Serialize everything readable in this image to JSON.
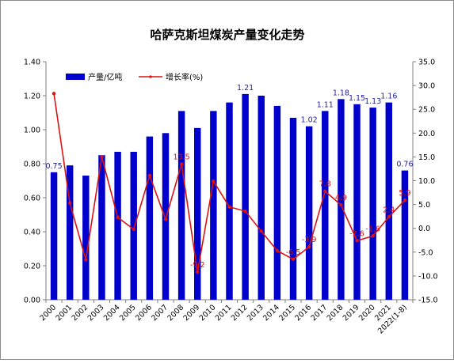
{
  "chart_data": {
    "type": "bar",
    "title": "哈萨克斯坦煤炭产量变化走势",
    "categories": [
      "2000",
      "2001",
      "2002",
      "2003",
      "2004",
      "2005",
      "2006",
      "2007",
      "2008",
      "2009",
      "2010",
      "2011",
      "2012",
      "2013",
      "2014",
      "2015",
      "2016",
      "2017",
      "2018",
      "2019",
      "2020",
      "2021",
      "2022(1-8)"
    ],
    "series": [
      {
        "name": "产量/亿吨",
        "kind": "bar",
        "axis": "left",
        "color": "#0000cc",
        "values": [
          0.75,
          0.79,
          0.73,
          0.85,
          0.87,
          0.87,
          0.96,
          0.98,
          1.11,
          1.01,
          1.11,
          1.16,
          1.21,
          1.2,
          1.14,
          1.07,
          1.02,
          1.11,
          1.18,
          1.15,
          1.13,
          1.16,
          0.76
        ],
        "labels": [
          "0.75",
          "",
          "",
          "",
          "",
          "",
          "",
          "",
          "",
          "",
          "",
          "",
          "1.21",
          "",
          "",
          "",
          "1.02",
          "1.11",
          "1.18",
          "1.15",
          "1.13",
          "1.16",
          "0.76"
        ]
      },
      {
        "name": "增长率(%)",
        "kind": "line",
        "axis": "right",
        "color": "#dd1111",
        "values": [
          28.3,
          5.3,
          -6.6,
          15.0,
          2.3,
          -0.2,
          11.1,
          1.9,
          13.5,
          -9.2,
          9.9,
          4.5,
          3.6,
          -0.6,
          -4.7,
          -6.5,
          -3.9,
          7.8,
          4.9,
          -2.6,
          -1.6,
          2.4,
          5.9
        ],
        "labels": [
          "",
          "",
          "",
          "",
          "",
          "",
          "",
          "",
          "13.5",
          "-9.2",
          "",
          "",
          "",
          "",
          "",
          "-6.5",
          "-3.9",
          "7.8",
          "4.9",
          "-2.6",
          "-1.6",
          "2.4",
          "5.9"
        ]
      }
    ],
    "y_left": {
      "min": 0,
      "max": 1.4,
      "step": 0.2,
      "ticks": [
        "0.00",
        "0.20",
        "0.40",
        "0.60",
        "0.80",
        "1.00",
        "1.20",
        "1.40"
      ]
    },
    "y_right": {
      "min": -15,
      "max": 35,
      "step": 5,
      "ticks": [
        "-15.0",
        "-10.0",
        "-5.0",
        "0.0",
        "5.0",
        "10.0",
        "15.0",
        "20.0",
        "25.0",
        "30.0",
        "35.0"
      ]
    },
    "legend_position": "top-left",
    "grid": false
  }
}
